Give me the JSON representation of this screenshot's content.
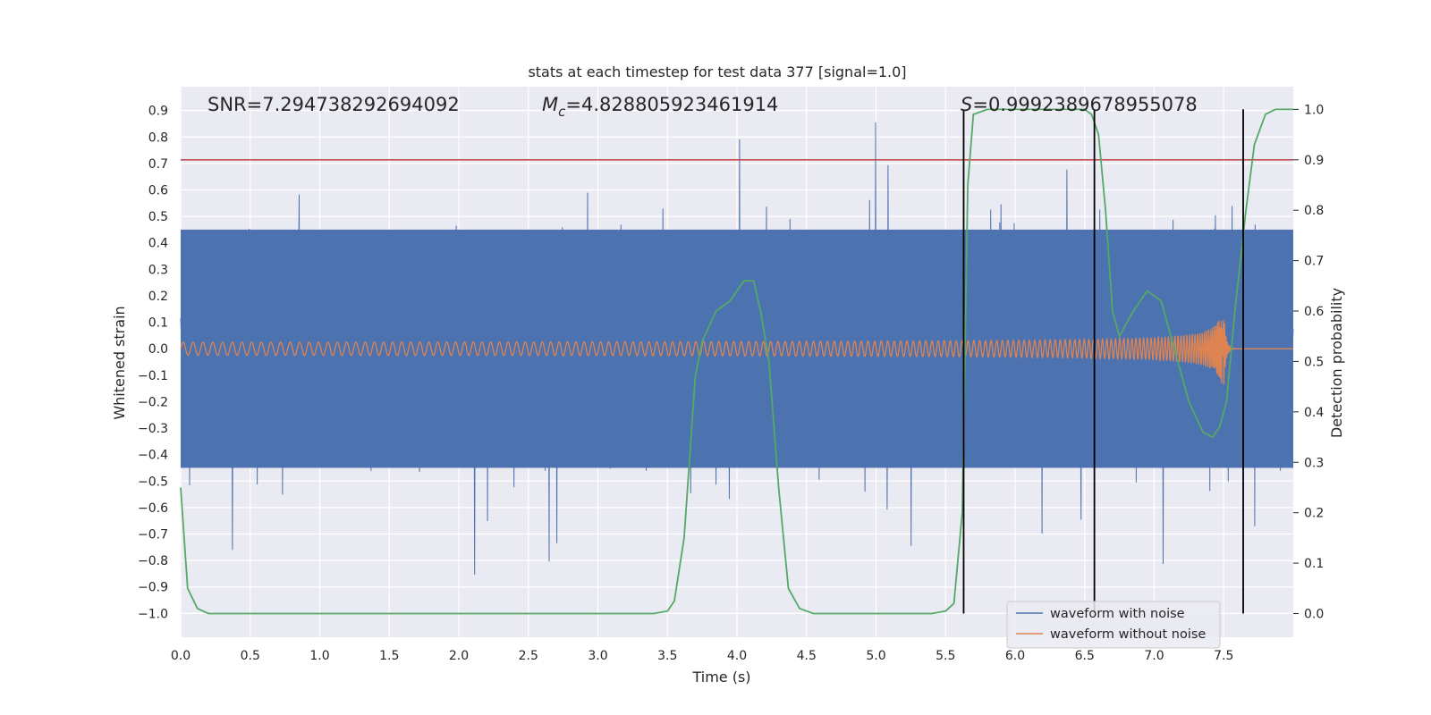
{
  "chart_data": {
    "type": "line",
    "title": "stats at each timestep for test data 377 [signal=1.0]",
    "xlabel": "Time (s)",
    "ylabel": "Whitened strain",
    "y2label": "Detection probability",
    "xlim": [
      0.0,
      8.0
    ],
    "ylim": [
      -1.09,
      0.99
    ],
    "y2lim": [
      -0.047,
      1.045
    ],
    "xticks": [
      "0.0",
      "0.5",
      "1.0",
      "1.5",
      "2.0",
      "2.5",
      "3.0",
      "3.5",
      "4.0",
      "4.5",
      "5.0",
      "5.5",
      "6.0",
      "6.5",
      "7.0",
      "7.5"
    ],
    "yticks": [
      "0.9",
      "0.8",
      "0.7",
      "0.6",
      "0.5",
      "0.4",
      "0.3",
      "0.2",
      "0.1",
      "0.0",
      "−0.1",
      "−0.2",
      "−0.3",
      "−0.4",
      "−0.5",
      "−0.6",
      "−0.7",
      "−0.8",
      "−0.9",
      "−1.0"
    ],
    "y2ticks": [
      "1.0",
      "0.9",
      "0.8",
      "0.7",
      "0.6",
      "0.5",
      "0.4",
      "0.3",
      "0.2",
      "0.1",
      "0.0"
    ],
    "annotations": {
      "snr": "SNR=7.294738292694092",
      "mc": "=4.828805923461914",
      "mc_symbol": "M",
      "mc_sub": "c",
      "s": "=0.9992389678955078",
      "s_symbol": "S"
    },
    "threshold_y2": 0.9,
    "vlines_x": [
      5.63,
      6.57,
      7.64
    ],
    "series": [
      {
        "name": "waveform with noise",
        "color": "#4c72b0",
        "description": "dense whitened strain noise, approx. range -1.0 to 0.88",
        "envelope_high": 0.45,
        "envelope_low": -0.45
      },
      {
        "name": "waveform without noise",
        "color": "#dd8452",
        "chirp_start_amp": 0.02,
        "chirp_peak_amp": 0.18,
        "merger_time": 7.5
      },
      {
        "name": "detection probability",
        "color": "#55a868",
        "axis": "right",
        "x": [
          0.0,
          0.05,
          0.12,
          0.2,
          0.3,
          1.0,
          2.0,
          3.0,
          3.4,
          3.5,
          3.55,
          3.62,
          3.7,
          3.75,
          3.85,
          3.95,
          4.05,
          4.12,
          4.17,
          4.23,
          4.3,
          4.37,
          4.45,
          4.55,
          5.0,
          5.4,
          5.5,
          5.56,
          5.62,
          5.66,
          5.7,
          5.8,
          6.0,
          6.3,
          6.5,
          6.55,
          6.6,
          6.65,
          6.7,
          6.75,
          6.85,
          6.95,
          7.05,
          7.15,
          7.25,
          7.35,
          7.42,
          7.47,
          7.52,
          7.58,
          7.66,
          7.72,
          7.8,
          7.87,
          8.0
        ],
        "values": [
          0.25,
          0.05,
          0.01,
          0.0,
          0.0,
          0.0,
          0.0,
          0.0,
          0.0,
          0.005,
          0.025,
          0.15,
          0.47,
          0.54,
          0.6,
          0.62,
          0.66,
          0.66,
          0.6,
          0.5,
          0.25,
          0.05,
          0.01,
          0.0,
          0.0,
          0.0,
          0.005,
          0.02,
          0.2,
          0.85,
          0.99,
          1.0,
          1.0,
          1.0,
          1.0,
          0.99,
          0.95,
          0.8,
          0.6,
          0.55,
          0.6,
          0.64,
          0.62,
          0.52,
          0.42,
          0.36,
          0.35,
          0.37,
          0.42,
          0.6,
          0.8,
          0.93,
          0.99,
          1.0,
          1.0
        ]
      }
    ],
    "legend": {
      "position": "lower-right",
      "entries": [
        "waveform with noise",
        "waveform without noise"
      ]
    },
    "grid": true
  },
  "colors": {
    "background": "#eaeaf2",
    "grid": "#ffffff",
    "threshold": "#c44e52",
    "vline": "#000000"
  }
}
